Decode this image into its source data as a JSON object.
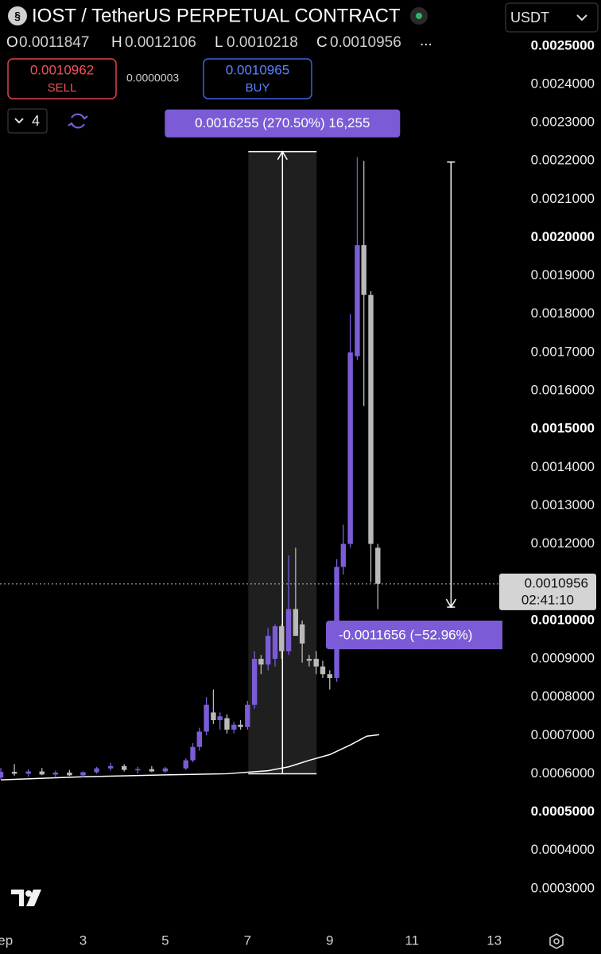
{
  "header": {
    "title": "IOST / TetherUS PERPETUAL CONTRACT",
    "ohlc": [
      {
        "key": "O",
        "value": "0.0011847"
      },
      {
        "key": "H",
        "value": "0.0012106"
      },
      {
        "key": "L",
        "value": "0.0010218"
      },
      {
        "key": "C",
        "value": "0.0010956"
      }
    ],
    "more": "...",
    "sell_price": "0.0010962",
    "sell": "SELL",
    "spread": "0.0000003",
    "buy_price": "0.0010965",
    "buy": "BUY",
    "indicators": "4",
    "currency": "USDT"
  },
  "chart_data": {
    "type": "candlestick",
    "x": [
      1,
      1.33,
      1.67,
      2,
      2.33,
      2.67,
      3,
      3.33,
      3.67,
      4,
      4.33,
      4.67,
      5,
      5.5,
      5.67,
      5.83,
      6,
      6.17,
      6.33,
      6.5,
      6.67,
      6.83,
      7,
      7.17,
      7.33,
      7.5,
      7.67,
      7.83,
      8,
      8.17,
      8.33,
      8.5,
      8.67,
      8.83,
      9,
      9.17,
      9.33,
      9.5,
      9.67,
      9.83,
      10,
      10.17
    ],
    "candles": {
      "open": [
        0.00059,
        0.000605,
        0.0006,
        0.000606,
        0.000598,
        0.000603,
        0.000596,
        0.000604,
        0.000614,
        0.00062,
        0.00061,
        0.000612,
        0.000606,
        0.000614,
        0.000635,
        0.00067,
        0.00071,
        0.00076,
        0.00074,
        0.000745,
        0.000715,
        0.000728,
        0.000722,
        0.00078,
        0.0009,
        0.000885,
        0.0009,
        0.000985,
        0.00092,
        0.00103,
        0.00099,
        0.0009,
        0.0009,
        0.00088,
        0.00086,
        0.00085,
        0.00114,
        0.0012,
        0.00169,
        0.00198,
        0.00185,
        0.00119
      ],
      "high": [
        0.000615,
        0.000625,
        0.000612,
        0.000615,
        0.000608,
        0.00061,
        0.000606,
        0.000618,
        0.000628,
        0.000625,
        0.000618,
        0.00062,
        0.000618,
        0.00064,
        0.00068,
        0.00072,
        0.0008,
        0.00082,
        0.00076,
        0.000755,
        0.000735,
        0.00074,
        0.00079,
        0.00092,
        0.00091,
        0.00098,
        0.00099,
        0.00099,
        0.00117,
        0.00119,
        0.001,
        0.00091,
        0.00092,
        0.000895,
        0.00087,
        0.00116,
        0.00125,
        0.0018,
        0.00221,
        0.0022,
        0.00186,
        0.0012
      ],
      "low": [
        0.000585,
        0.000595,
        0.000592,
        0.000596,
        0.00059,
        0.000594,
        0.00059,
        0.0006,
        0.000608,
        0.000606,
        0.0006,
        0.000604,
        0.000602,
        0.00061,
        0.00063,
        0.00066,
        0.0007,
        0.00073,
        0.000715,
        0.000705,
        0.000705,
        0.000715,
        0.000715,
        0.00077,
        0.00086,
        0.00087,
        0.00088,
        0.0009,
        0.00091,
        0.00096,
        0.00089,
        0.00088,
        0.00086,
        0.00085,
        0.00082,
        0.00084,
        0.00112,
        0.00119,
        0.00168,
        0.00156,
        0.0011,
        0.00103
      ],
      "close": [
        0.000605,
        0.0006,
        0.000606,
        0.000598,
        0.000603,
        0.000596,
        0.000604,
        0.000614,
        0.00062,
        0.00061,
        0.000612,
        0.000606,
        0.000614,
        0.000635,
        0.00067,
        0.00071,
        0.00078,
        0.00074,
        0.00075,
        0.000715,
        0.000728,
        0.000722,
        0.00078,
        0.0009,
        0.000885,
        0.00096,
        0.000985,
        0.00092,
        0.00103,
        0.00096,
        0.00094,
        0.000895,
        0.00088,
        0.00086,
        0.00085,
        0.00114,
        0.0012,
        0.0017,
        0.00198,
        0.00185,
        0.0012,
        0.001096
      ]
    },
    "up_color": "#7b5cd6",
    "down_color": "#b9b9b9",
    "ma": {
      "x": [
        1,
        3,
        5,
        6.5,
        7.5,
        8,
        8.5,
        9,
        9.5,
        9.9,
        10.2
      ],
      "values": [
        0.000584,
        0.000592,
        0.000597,
        0.0006,
        0.000608,
        0.000618,
        0.000635,
        0.00065,
        0.000675,
        0.000698,
        0.000702
      ],
      "color": "#ffffff"
    },
    "xlim": [
      0.98,
      13.2
    ],
    "xticks": [
      {
        "value": 1,
        "label": "Sep"
      },
      3,
      5,
      7,
      9,
      11,
      13
    ],
    "ylim": [
      0.0002,
      0.00262
    ],
    "yticks": [
      {
        "value": 0.0025,
        "label": "0.0025000"
      },
      {
        "value": 0.0024,
        "label": "0.0024000"
      },
      {
        "value": 0.0023,
        "label": "0.0023000"
      },
      {
        "value": 0.0022,
        "label": "0.0022000"
      },
      {
        "value": 0.0021,
        "label": "0.0021000"
      },
      {
        "value": 0.002,
        "label": "0.0020000"
      },
      {
        "value": 0.0019,
        "label": "0.0019000"
      },
      {
        "value": 0.0018,
        "label": "0.0018000"
      },
      {
        "value": 0.0017,
        "label": "0.0017000"
      },
      {
        "value": 0.0016,
        "label": "0.0016000"
      },
      {
        "value": 0.0015,
        "label": "0.0015000"
      },
      {
        "value": 0.0014,
        "label": "0.0014000"
      },
      {
        "value": 0.0013,
        "label": "0.0013000"
      },
      {
        "value": 0.0012,
        "label": "0.0012000"
      },
      {
        "value": 0.0011,
        "label": "0.0011000"
      },
      {
        "value": 0.001,
        "label": "0.0010000"
      },
      {
        "value": 0.0009,
        "label": "0.0009000"
      },
      {
        "value": 0.0008,
        "label": "0.0008000"
      },
      {
        "value": 0.0007,
        "label": "0.0007000"
      },
      {
        "value": 0.0006,
        "label": "0.0006000"
      },
      {
        "value": 0.0005,
        "label": "0.0005000"
      },
      {
        "value": 0.0004,
        "label": "0.0004000"
      },
      {
        "value": 0.0003,
        "label": "0.0003000"
      }
    ],
    "grid": false,
    "current_price": 0.0010956,
    "countdown": "02:41:10",
    "annotations": [
      {
        "text": "0.0016255 (270.50%) 16,255",
        "x": [
          7.02,
          8.68
        ],
        "y": [
          0.0006,
          0.002224
        ]
      },
      {
        "text": "-0.0011656 (−52.96%)",
        "x": 11.95,
        "y": [
          0.002197,
          0.001035
        ]
      }
    ]
  }
}
